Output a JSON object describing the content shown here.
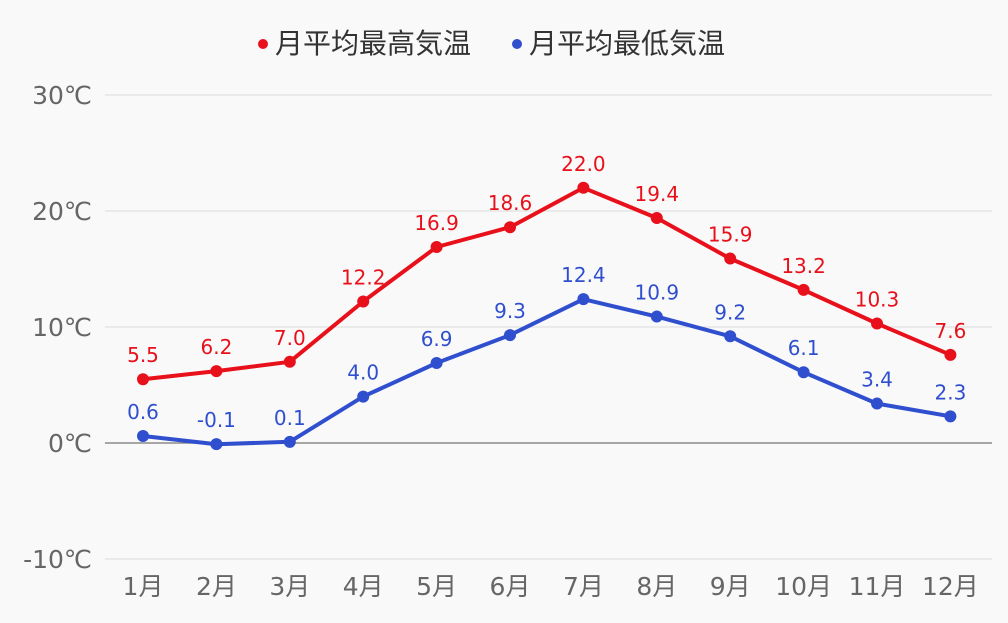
{
  "chart_data": {
    "type": "line",
    "categories": [
      "1月",
      "2月",
      "3月",
      "4月",
      "5月",
      "6月",
      "7月",
      "8月",
      "9月",
      "10月",
      "11月",
      "12月"
    ],
    "series": [
      {
        "name": "月平均最高気温",
        "color": "#e8101a",
        "values": [
          5.5,
          6.2,
          7.0,
          12.2,
          16.9,
          18.6,
          22.0,
          19.4,
          15.9,
          13.2,
          10.3,
          7.6
        ],
        "labels": [
          "5.5",
          "6.2",
          "7.0",
          "12.2",
          "16.9",
          "18.6",
          "22.0",
          "19.4",
          "15.9",
          "13.2",
          "10.3",
          "7.6"
        ]
      },
      {
        "name": "月平均最低気温",
        "color": "#2f4fce",
        "values": [
          0.6,
          -0.1,
          0.1,
          4.0,
          6.9,
          9.3,
          12.4,
          10.9,
          9.2,
          6.1,
          3.4,
          2.3
        ],
        "labels": [
          "0.6",
          "-0.1",
          "0.1",
          "4.0",
          "6.9",
          "9.3",
          "12.4",
          "10.9",
          "9.2",
          "6.1",
          "3.4",
          "2.3"
        ]
      }
    ],
    "y_ticks": [
      30,
      20,
      10,
      0,
      -10
    ],
    "y_tick_labels": [
      "30℃",
      "20℃",
      "10℃",
      "0℃",
      "-10℃"
    ],
    "ylim": [
      -10,
      30
    ],
    "grid": true,
    "legend_position": "top-center",
    "title": "",
    "xlabel": "",
    "ylabel": ""
  }
}
